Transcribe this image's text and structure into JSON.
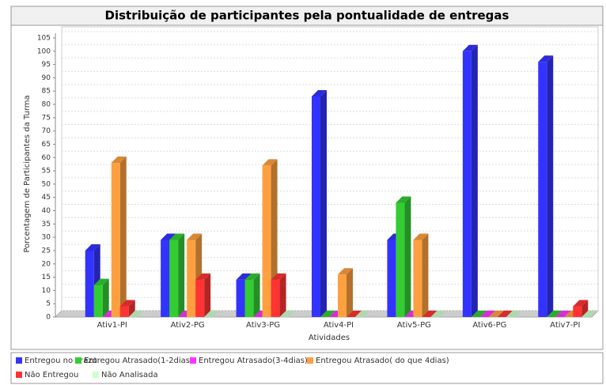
{
  "chart_data": {
    "type": "bar3d",
    "title": "Distribuição de participantes pela pontualidade de entregas",
    "x_label": "Atividades",
    "y_label": "Porcentagem de Participantes da Turma",
    "categories": [
      "Ativ1-PI",
      "Ativ2-PG",
      "Ativ3-PG",
      "Ativ4-PI",
      "Ativ5-PG",
      "Ativ6-PG",
      "Ativ7-PI"
    ],
    "series": [
      {
        "name": "Entregou no Prazo",
        "color": "#3333ff",
        "values": [
          25,
          29,
          14,
          83,
          29,
          100,
          96
        ]
      },
      {
        "name": "Entregou Atrasado(1-2dias)",
        "color": "#33cc33",
        "values": [
          12,
          29,
          14,
          0,
          43,
          0,
          0
        ]
      },
      {
        "name": "Entregou Atrasado(3-4dias)",
        "color": "#ff33ff",
        "values": [
          0,
          0,
          0,
          0,
          0,
          0,
          0
        ]
      },
      {
        "name": "Entregou Atrasado(  do que 4dias)",
        "color": "#ffa040",
        "values": [
          58,
          29,
          57,
          16,
          29,
          0,
          0
        ]
      },
      {
        "name": "Não  Entregou",
        "color": "#ff3333",
        "values": [
          4,
          14,
          14,
          0,
          0,
          0,
          4
        ]
      },
      {
        "name": "Não Analisada",
        "color": "#ccffcc",
        "values": [
          0,
          0,
          0,
          0,
          0,
          0,
          0
        ]
      }
    ],
    "ylim": [
      0,
      105
    ],
    "yticks": [
      0,
      5,
      10,
      15,
      20,
      25,
      30,
      35,
      40,
      45,
      50,
      55,
      60,
      65,
      70,
      75,
      80,
      85,
      90,
      95,
      100,
      105
    ],
    "grid": true
  }
}
